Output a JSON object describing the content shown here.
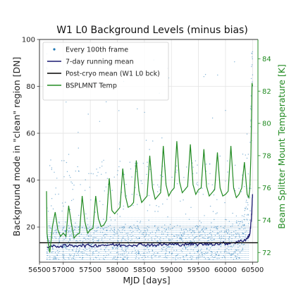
{
  "chart_data": {
    "type": "scatter",
    "title": "W1 L0 Background Levels (minus bias)",
    "xlabel": "MJD [days]",
    "ylabel": "Background mode in \"clean\" region [DN]",
    "ylabel_right": "Beam Splitter Mount Temperature [K]",
    "xlim": [
      56560,
      60600
    ],
    "ylim": [
      5,
      100
    ],
    "ylim_right": [
      71.4,
      85.2
    ],
    "xticks": [
      56500,
      57000,
      57500,
      58000,
      58500,
      59000,
      59500,
      60000,
      60500
    ],
    "yticks": [
      20,
      40,
      60,
      80,
      100
    ],
    "yticks_right": [
      72,
      74,
      76,
      78,
      80,
      82,
      84
    ],
    "grid": true,
    "legend_position": "upper-left",
    "colors": {
      "scatter": "#1f77b4",
      "running_mean": "#191970",
      "post_cryo": "#000000",
      "temp": "#228b22",
      "right_axis": "#228b22"
    },
    "series": [
      {
        "name": "Every 100th frame",
        "kind": "scatter",
        "note_range": "dense band from about 5 to 25 DN, sparse outliers up to ~100 DN, rising sharply near MJD 60450",
        "x": [
          56700,
          56900,
          57100,
          57300,
          57500,
          57700,
          57900,
          58100,
          58300,
          58500,
          58700,
          58900,
          59100,
          59300,
          59500,
          59700,
          59900,
          60100,
          60300,
          60450,
          60480,
          60500
        ],
        "y": [
          13,
          12,
          13,
          12,
          13,
          12,
          13,
          12,
          13,
          12,
          13,
          12,
          13,
          12,
          13,
          12,
          13,
          13,
          15,
          30,
          60,
          95
        ]
      },
      {
        "name": "7-day running mean",
        "kind": "line",
        "x": [
          56700,
          56900,
          57100,
          57300,
          57500,
          57700,
          57900,
          58100,
          58300,
          58500,
          58700,
          58900,
          59100,
          59300,
          59500,
          59700,
          59900,
          60100,
          60300,
          60400,
          60450,
          60480,
          60500
        ],
        "y": [
          11.5,
          11.8,
          12.0,
          12.2,
          12.0,
          12.3,
          12.4,
          12.2,
          12.4,
          12.5,
          12.3,
          12.6,
          12.5,
          12.7,
          12.6,
          12.8,
          12.9,
          13.2,
          14.0,
          15.0,
          17.0,
          24.0,
          34.0
        ]
      },
      {
        "name": "Post-cryo mean (W1 L0 bck)",
        "kind": "hline",
        "y": 13.3
      },
      {
        "name": "BSPLMNT Temp",
        "kind": "line",
        "axis": "right",
        "x": [
          56690,
          56700,
          56720,
          56750,
          56780,
          56800,
          56850,
          56900,
          56950,
          57000,
          57050,
          57100,
          57150,
          57200,
          57250,
          57300,
          57350,
          57400,
          57450,
          57500,
          57550,
          57600,
          57650,
          57700,
          57750,
          57800,
          57850,
          57900,
          57950,
          58000,
          58050,
          58100,
          58150,
          58200,
          58250,
          58300,
          58350,
          58400,
          58450,
          58500,
          58550,
          58600,
          58650,
          58700,
          58750,
          58800,
          58850,
          58900,
          58950,
          59000,
          59050,
          59100,
          59150,
          59200,
          59250,
          59300,
          59350,
          59400,
          59450,
          59500,
          59550,
          59600,
          59650,
          59700,
          59750,
          59800,
          59850,
          59900,
          59950,
          60000,
          60050,
          60100,
          60150,
          60200,
          60250,
          60300,
          60350,
          60400,
          60430,
          60450,
          60470,
          60490,
          60500
        ],
        "y": [
          75.8,
          73.2,
          72.6,
          72.0,
          72.9,
          73.6,
          74.5,
          73.4,
          73.0,
          73.2,
          73.0,
          74.9,
          73.8,
          72.9,
          73.1,
          73.2,
          75.5,
          73.9,
          73.2,
          73.4,
          73.5,
          75.5,
          74.1,
          73.6,
          73.7,
          74.0,
          76.6,
          74.6,
          74.4,
          74.6,
          74.8,
          77.2,
          75.5,
          74.8,
          74.9,
          75.1,
          77.7,
          75.8,
          75.1,
          75.3,
          75.5,
          78.0,
          76.0,
          75.3,
          75.5,
          75.7,
          78.6,
          76.2,
          75.5,
          75.8,
          76.0,
          78.9,
          76.4,
          75.7,
          75.9,
          76.1,
          78.7,
          76.2,
          75.6,
          75.9,
          76.0,
          78.4,
          76.1,
          75.5,
          75.7,
          75.9,
          78.2,
          76.0,
          75.5,
          75.6,
          75.8,
          78.6,
          76.0,
          75.4,
          75.6,
          76.0,
          77.6,
          75.6,
          75.4,
          76.0,
          78.0,
          82.5,
          82.3
        ]
      }
    ]
  }
}
